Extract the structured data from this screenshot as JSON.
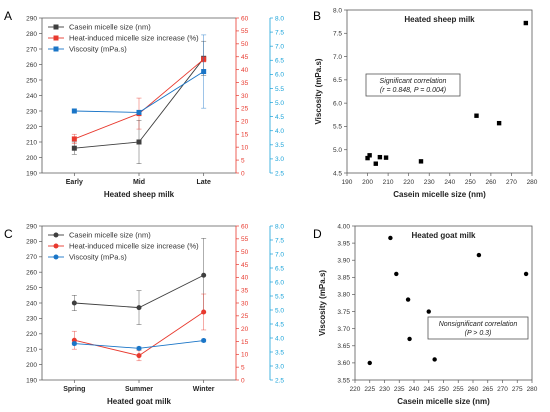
{
  "figure": {
    "panels": [
      "A",
      "B",
      "C",
      "D"
    ]
  },
  "colors": {
    "axis": "#595959",
    "series1": "#3f3f3f",
    "series2": "#e8392e",
    "series3": "#1a75c7",
    "axis2": "#e8392e",
    "axis3": "#1aa3d9"
  },
  "chart_data": [
    {
      "panel": "A",
      "type": "line",
      "categories": [
        "Early",
        "Mid",
        "Late"
      ],
      "xlabel": "Heated sheep milk",
      "legend_position": "top-left",
      "axes": {
        "y1": {
          "range": [
            190,
            290
          ],
          "ticks": [
            190,
            200,
            210,
            220,
            230,
            240,
            250,
            260,
            270,
            280,
            290
          ]
        },
        "y2": {
          "range": [
            0,
            60
          ],
          "ticks": [
            0,
            5,
            10,
            15,
            20,
            25,
            30,
            35,
            40,
            45,
            50,
            55,
            60
          ]
        },
        "y3": {
          "range": [
            2.5,
            8.0
          ],
          "ticks": [
            "2.5",
            "3.0",
            "3.5",
            "4.0",
            "4.5",
            "5.0",
            "5.5",
            "6.0",
            "6.5",
            "7.0",
            "7.5",
            "8.0"
          ]
        }
      },
      "series": [
        {
          "name": "Casein micelle size (nm)",
          "axis": "y1",
          "marker": "square",
          "values": [
            206,
            210,
            264
          ],
          "err": [
            4,
            14,
            11
          ]
        },
        {
          "name": "Heat-induced micelle size increase (%)",
          "axis": "y2",
          "marker": "square",
          "values": [
            13.2,
            23,
            44
          ],
          "err": [
            1.8,
            6,
            1
          ]
        },
        {
          "name": "Viscosity (mPa.s)",
          "axis": "y3",
          "marker": "square",
          "values": [
            4.7,
            4.65,
            6.1
          ],
          "err": [
            0,
            0,
            1.3
          ]
        }
      ]
    },
    {
      "panel": "B",
      "type": "scatter",
      "title": "Heated sheep milk",
      "xlabel": "Casein micelle size (nm)",
      "ylabel": "Viscosity (mPa.s)",
      "xlim": [
        190,
        280
      ],
      "ylim": [
        4.5,
        8.0
      ],
      "xticks": [
        190,
        200,
        210,
        220,
        230,
        240,
        250,
        260,
        270,
        280
      ],
      "yticks": [
        "4.5",
        "5.0",
        "5.5",
        "6.0",
        "6.5",
        "7.0",
        "7.5",
        "8.0"
      ],
      "marker": "square",
      "annotation": [
        "Significant correlation",
        "(r = 0.848, P = 0.004)"
      ],
      "points": [
        [
          200,
          4.82
        ],
        [
          201,
          4.88
        ],
        [
          204,
          4.7
        ],
        [
          206,
          4.84
        ],
        [
          209,
          4.83
        ],
        [
          226,
          4.75
        ],
        [
          253,
          5.73
        ],
        [
          264,
          5.57
        ],
        [
          277,
          7.72
        ]
      ]
    },
    {
      "panel": "C",
      "type": "line",
      "categories": [
        "Spring",
        "Summer",
        "Winter"
      ],
      "xlabel": "Heated goat milk",
      "legend_position": "top-left",
      "axes": {
        "y1": {
          "range": [
            190,
            290
          ],
          "ticks": [
            190,
            200,
            210,
            220,
            230,
            240,
            250,
            260,
            270,
            280,
            290
          ]
        },
        "y2": {
          "range": [
            0,
            60
          ],
          "ticks": [
            0,
            5,
            10,
            15,
            20,
            25,
            30,
            35,
            40,
            45,
            50,
            55,
            60
          ]
        },
        "y3": {
          "range": [
            2.5,
            8.0
          ],
          "ticks": [
            "2.5",
            "3.0",
            "3.5",
            "4.0",
            "4.5",
            "5.0",
            "5.5",
            "6.0",
            "6.5",
            "7.0",
            "7.5",
            "8.0"
          ]
        }
      },
      "series": [
        {
          "name": "Casein micelle size (nm)",
          "axis": "y1",
          "marker": "circle",
          "values": [
            240,
            237,
            258
          ],
          "err": [
            5,
            11,
            24
          ]
        },
        {
          "name": "Heat-induced micelle size increase (%)",
          "axis": "y2",
          "marker": "circle",
          "values": [
            15.5,
            9.5,
            26.5
          ],
          "err": [
            3.5,
            2,
            7
          ]
        },
        {
          "name": "Viscosity (mPa.s)",
          "axis": "y3",
          "marker": "circle",
          "values": [
            3.8,
            3.63,
            3.91
          ],
          "err": [
            0.05,
            0.05,
            0.05
          ]
        }
      ]
    },
    {
      "panel": "D",
      "type": "scatter",
      "title": "Heated goat milk",
      "xlabel": "Casein micelle size (nm)",
      "ylabel": "Viscosity (mPa.s)",
      "xlim": [
        220,
        280
      ],
      "ylim": [
        3.55,
        4.0
      ],
      "xticks": [
        220,
        225,
        230,
        235,
        240,
        245,
        250,
        255,
        260,
        265,
        270,
        275,
        280
      ],
      "yticks": [
        "3.55",
        "3.60",
        "3.65",
        "3.70",
        "3.75",
        "3.80",
        "3.85",
        "3.90",
        "3.95",
        "4.00"
      ],
      "marker": "circle",
      "annotation": [
        "Nonsignificant correlation",
        "(P > 0.3)"
      ],
      "points": [
        [
          225,
          3.6
        ],
        [
          232,
          3.965
        ],
        [
          234,
          3.86
        ],
        [
          238,
          3.785
        ],
        [
          238.5,
          3.67
        ],
        [
          245,
          3.75
        ],
        [
          247,
          3.61
        ],
        [
          262,
          3.915
        ],
        [
          278,
          3.86
        ]
      ]
    }
  ]
}
